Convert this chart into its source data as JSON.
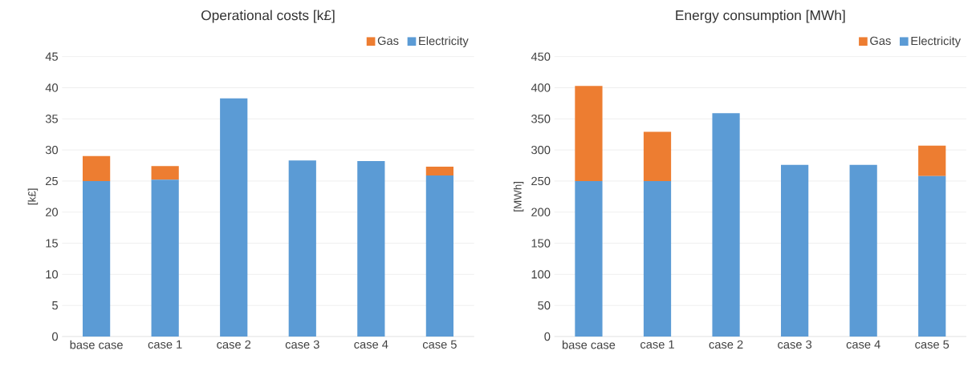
{
  "chart_data": [
    {
      "type": "bar",
      "title": "Operational costs [k£]",
      "ylabel": "[k£]",
      "stacked": true,
      "legend": "top right",
      "grid": "y",
      "categories": [
        "base case",
        "case 1",
        "case 2",
        "case 3",
        "case 4",
        "case 5"
      ],
      "series": [
        {
          "name": "Electricity",
          "color": "#5b9bd5",
          "values": [
            25.0,
            25.2,
            38.3,
            28.3,
            28.2,
            25.9
          ]
        },
        {
          "name": "Gas",
          "color": "#ed7d31",
          "values": [
            4.0,
            2.2,
            0,
            0,
            0,
            1.4
          ]
        }
      ],
      "ylim": [
        0,
        45
      ],
      "yticks": [
        0,
        5,
        10,
        15,
        20,
        25,
        30,
        35,
        40,
        45
      ]
    },
    {
      "type": "bar",
      "title": "Energy consumption [MWh]",
      "ylabel": "[MWh]",
      "stacked": true,
      "legend": "top right",
      "grid": "y",
      "categories": [
        "base case",
        "case 1",
        "case 2",
        "case 3",
        "case 4",
        "case 5"
      ],
      "series": [
        {
          "name": "Electricity",
          "color": "#5b9bd5",
          "values": [
            250,
            250,
            359,
            276,
            276,
            258
          ]
        },
        {
          "name": "Gas",
          "color": "#ed7d31",
          "values": [
            153,
            79,
            0,
            0,
            0,
            49
          ]
        }
      ],
      "ylim": [
        0,
        450
      ],
      "yticks": [
        0,
        50,
        100,
        150,
        200,
        250,
        300,
        350,
        400,
        450
      ]
    }
  ]
}
